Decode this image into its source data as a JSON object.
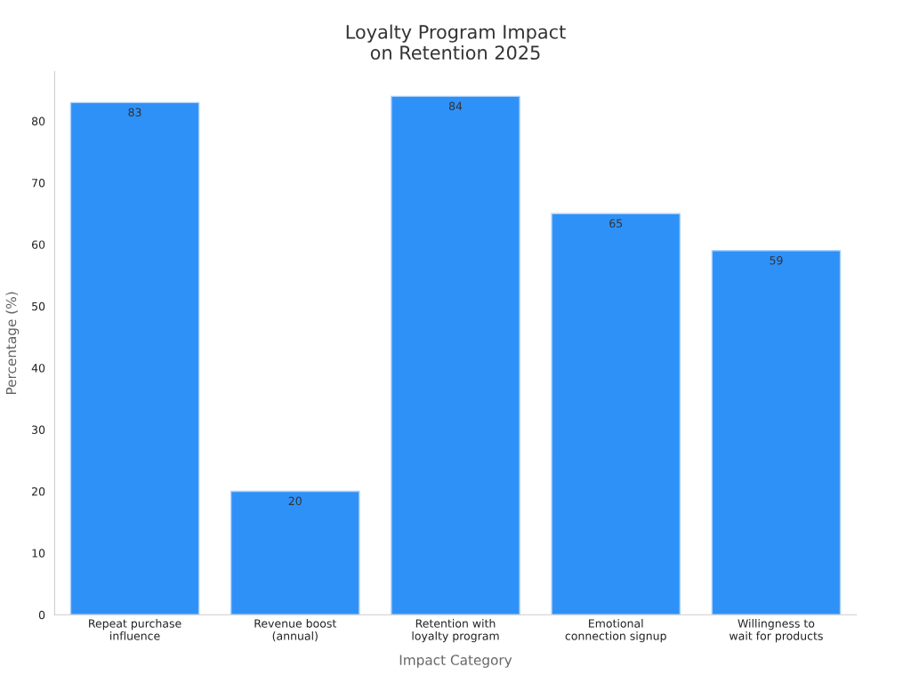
{
  "chart_data": {
    "type": "bar",
    "title": "Loyalty Program Impact\non Retention 2025",
    "xlabel": "Impact Category",
    "ylabel": "Percentage (%)",
    "categories": [
      "Repeat purchase\ninfluence",
      "Revenue boost\n(annual)",
      "Retention with\nloyalty program",
      "Emotional\nconnection signup",
      "Willingness to\nwait for products"
    ],
    "values": [
      83,
      20,
      84,
      65,
      59
    ],
    "color": "#2e91f8",
    "ylim": [
      0,
      88
    ],
    "yticks": [
      0,
      10,
      20,
      30,
      40,
      50,
      60,
      70,
      80
    ],
    "grid": false,
    "data_labels": true
  }
}
